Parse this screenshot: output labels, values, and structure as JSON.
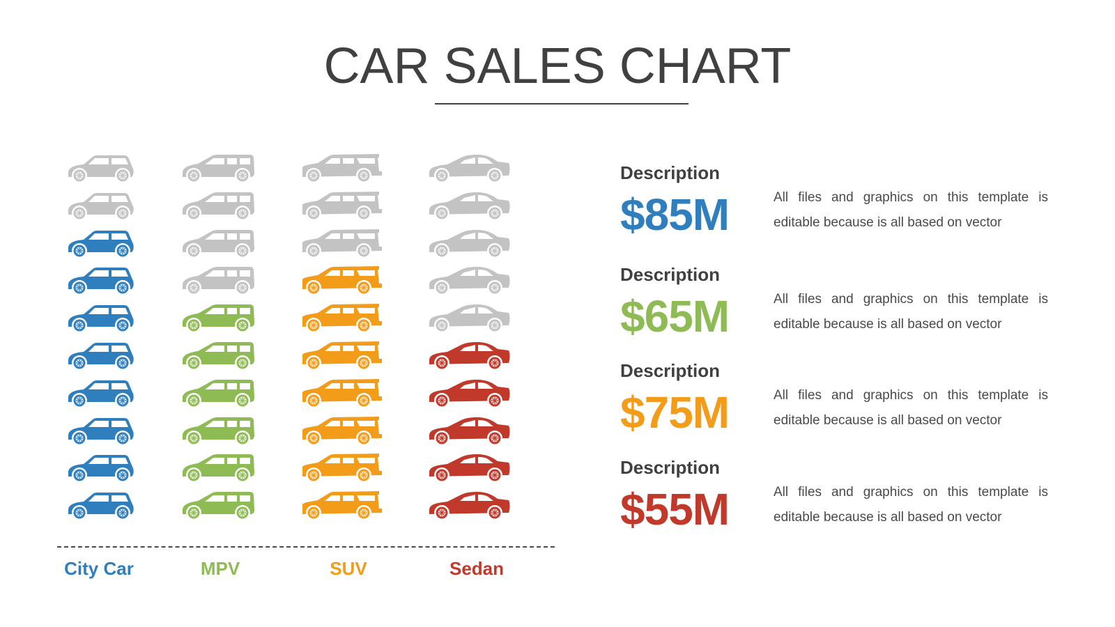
{
  "title": "CAR SALES CHART",
  "colors": {
    "inactive": "#c3c3c3",
    "city_car": "#2f7fbf",
    "mpv": "#8fbb55",
    "suv": "#f39c1a",
    "sedan": "#c0392b",
    "title": "#404040"
  },
  "categories": [
    {
      "label": "City Car",
      "color": "#2f7fbf",
      "filled": 8,
      "total": 10,
      "icon": "hatchback-car-icon"
    },
    {
      "label": "MPV",
      "color": "#8fbb55",
      "filled": 6,
      "total": 10,
      "icon": "minivan-icon"
    },
    {
      "label": "SUV",
      "color": "#f39c1a",
      "filled": 7,
      "total": 10,
      "icon": "suv-icon"
    },
    {
      "label": "Sedan",
      "color": "#c0392b",
      "filled": 5,
      "total": 10,
      "icon": "sedan-icon"
    }
  ],
  "descriptions": [
    {
      "title": "Description",
      "value": "$85M",
      "color": "#2f7fbf",
      "text": "All files and graphics on this template is editable because is all based on vector"
    },
    {
      "title": "Description",
      "value": "$65M",
      "color": "#8fbb55",
      "text": "All files and graphics on this template is editable because is all based on vector"
    },
    {
      "title": "Description",
      "value": "$75M",
      "color": "#f39c1a",
      "text": "All files and graphics on this template is editable because is all based on vector"
    },
    {
      "title": "Description",
      "value": "$55M",
      "color": "#c0392b",
      "text": "All files and graphics on this template is editable because is all based on vector"
    }
  ],
  "chart_data": {
    "type": "bar",
    "subtype": "pictograph",
    "title": "CAR SALES CHART",
    "categories": [
      "City Car",
      "MPV",
      "SUV",
      "Sedan"
    ],
    "values": [
      85,
      65,
      75,
      55
    ],
    "value_labels": [
      "$85M",
      "$65M",
      "$75M",
      "$55M"
    ],
    "icon_counts_filled": [
      8,
      6,
      7,
      5
    ],
    "icon_count_total": 10,
    "unit": "$M",
    "xlabel": "",
    "ylabel": "",
    "grid": false,
    "legend": "none (category labels beneath columns, colored to match)"
  }
}
